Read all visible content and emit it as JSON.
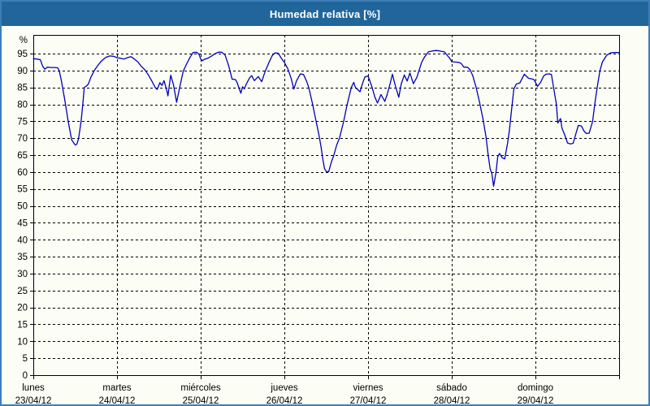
{
  "window": {
    "title": "Humedad relativa [%]"
  },
  "colors": {
    "titlebar_bg": "#20669a",
    "titlebar_text": "#ffffff",
    "frame_border": "#3d7eb8",
    "chart_bg": "#fcfdf5",
    "line": "#0000bd",
    "grid": "#000000",
    "text": "#000000"
  },
  "chart_data": {
    "type": "line",
    "title": "Humedad relativa [%]",
    "ylabel": "%",
    "ylim": [
      0,
      100.5
    ],
    "grid": true,
    "legend": "none",
    "y_ticks": [
      0,
      5,
      10,
      15,
      20,
      25,
      30,
      35,
      40,
      45,
      50,
      55,
      60,
      65,
      70,
      75,
      80,
      85,
      90,
      95
    ],
    "x_days": [
      {
        "name": "lunes",
        "date": "23/04/12"
      },
      {
        "name": "martes",
        "date": "24/04/12"
      },
      {
        "name": "miércoles",
        "date": "25/04/12"
      },
      {
        "name": "jueves",
        "date": "26/04/12"
      },
      {
        "name": "viernes",
        "date": "27/04/12"
      },
      {
        "name": "sábado",
        "date": "28/04/12"
      },
      {
        "name": "domingo",
        "date": "29/04/12"
      }
    ],
    "x_hours_total": 168,
    "series": [
      {
        "name": "Humedad relativa",
        "unit": "%",
        "points": [
          [
            0,
            93.5
          ],
          [
            1,
            93.4
          ],
          [
            2,
            93.2
          ],
          [
            2.7,
            91.2
          ],
          [
            3.3,
            90.4
          ],
          [
            4,
            91
          ],
          [
            5,
            90.9
          ],
          [
            6,
            90.9
          ],
          [
            7,
            90.8
          ],
          [
            7.4,
            90
          ],
          [
            8,
            87.3
          ],
          [
            9,
            81.5
          ],
          [
            10,
            75
          ],
          [
            11,
            69.5
          ],
          [
            12,
            68
          ],
          [
            12.5,
            68.2
          ],
          [
            13,
            70
          ],
          [
            13.7,
            75
          ],
          [
            14.2,
            80
          ],
          [
            14.6,
            85
          ],
          [
            15.2,
            85.4
          ],
          [
            15.8,
            86
          ],
          [
            16.5,
            88
          ],
          [
            17.5,
            90
          ],
          [
            18.5,
            91.5
          ],
          [
            19.5,
            92.8
          ],
          [
            20.8,
            93.9
          ],
          [
            21.9,
            94.3
          ],
          [
            23,
            94.2
          ],
          [
            24,
            93.8
          ],
          [
            25,
            93.6
          ],
          [
            26,
            93.4
          ],
          [
            27,
            93.8
          ],
          [
            28,
            94.1
          ],
          [
            29,
            93.4
          ],
          [
            30,
            92.5
          ],
          [
            31,
            91.2
          ],
          [
            32,
            90.2
          ],
          [
            33,
            88.7
          ],
          [
            34,
            86.9
          ],
          [
            35,
            84.9
          ],
          [
            35.5,
            84.4
          ],
          [
            36.3,
            86.4
          ],
          [
            36.9,
            85.6
          ],
          [
            37.5,
            87
          ],
          [
            38.3,
            84
          ],
          [
            38.6,
            82.5
          ],
          [
            39.4,
            88.6
          ],
          [
            40.2,
            85.8
          ],
          [
            41.1,
            80.6
          ],
          [
            42,
            85.2
          ],
          [
            43,
            89.8
          ],
          [
            44,
            92
          ],
          [
            45,
            94
          ],
          [
            45.8,
            95.3
          ],
          [
            46.8,
            95.4
          ],
          [
            47.5,
            94.8
          ],
          [
            48,
            93.4
          ],
          [
            48.5,
            92.9
          ],
          [
            49,
            93.3
          ],
          [
            50,
            93.6
          ],
          [
            51,
            94.2
          ],
          [
            52,
            94.9
          ],
          [
            53,
            95.4
          ],
          [
            54,
            95.4
          ],
          [
            55,
            94.6
          ],
          [
            56,
            91.5
          ],
          [
            56.5,
            89.5
          ],
          [
            57,
            87.5
          ],
          [
            58,
            87.3
          ],
          [
            58.5,
            86.3
          ],
          [
            59,
            84.8
          ],
          [
            59.5,
            83.3
          ],
          [
            60,
            85.2
          ],
          [
            60.5,
            84.6
          ],
          [
            61,
            85.8
          ],
          [
            62,
            87.8
          ],
          [
            62.6,
            88.5
          ],
          [
            63.4,
            87
          ],
          [
            64.5,
            88.2
          ],
          [
            65.5,
            86.7
          ],
          [
            66.5,
            89.8
          ],
          [
            67.5,
            92.2
          ],
          [
            68.5,
            94.4
          ],
          [
            69.3,
            95.2
          ],
          [
            70.3,
            95.1
          ],
          [
            71,
            93.8
          ],
          [
            72,
            92.4
          ],
          [
            73,
            90.5
          ],
          [
            74,
            87.5
          ],
          [
            74.7,
            84.5
          ],
          [
            75.5,
            87
          ],
          [
            76.6,
            89
          ],
          [
            77.5,
            88.8
          ],
          [
            78.5,
            86.5
          ],
          [
            79,
            85
          ],
          [
            80,
            80.5
          ],
          [
            81,
            75.5
          ],
          [
            81.5,
            73
          ],
          [
            82,
            70.5
          ],
          [
            82.5,
            67.5
          ],
          [
            83,
            64
          ],
          [
            83.5,
            61
          ],
          [
            84,
            60.2
          ],
          [
            84.7,
            60.1
          ],
          [
            85.5,
            63
          ],
          [
            86.2,
            65
          ],
          [
            87,
            68
          ],
          [
            87.8,
            70
          ],
          [
            89,
            75
          ],
          [
            90,
            80
          ],
          [
            91.2,
            85
          ],
          [
            91.9,
            86.5
          ],
          [
            92.4,
            84.9
          ],
          [
            93.2,
            84.2
          ],
          [
            93.7,
            83.7
          ],
          [
            94.5,
            86.5
          ],
          [
            95.1,
            88.1
          ],
          [
            96,
            88.4
          ],
          [
            97,
            85.5
          ],
          [
            98,
            82
          ],
          [
            98.7,
            80.4
          ],
          [
            99.7,
            82.9
          ],
          [
            100.8,
            80.9
          ],
          [
            101.5,
            83
          ],
          [
            102.3,
            86
          ],
          [
            103,
            88.9
          ],
          [
            103.7,
            86
          ],
          [
            104.8,
            82.1
          ],
          [
            105.5,
            86
          ],
          [
            106.4,
            88.7
          ],
          [
            107.2,
            86.9
          ],
          [
            108,
            89.3
          ],
          [
            109,
            86.1
          ],
          [
            110,
            88
          ],
          [
            110.6,
            90
          ],
          [
            111.4,
            92.5
          ],
          [
            112.2,
            94
          ],
          [
            113.3,
            95.5
          ],
          [
            114.5,
            95.8
          ],
          [
            115.5,
            95.9
          ],
          [
            116.5,
            95.8
          ],
          [
            117.9,
            95.5
          ],
          [
            118.7,
            94.5
          ],
          [
            119.5,
            93.5
          ],
          [
            120,
            92.6
          ],
          [
            121,
            92.5
          ],
          [
            122,
            92.4
          ],
          [
            122.7,
            92.1
          ],
          [
            123.5,
            91
          ],
          [
            124.5,
            91
          ],
          [
            125.3,
            90.2
          ],
          [
            126,
            88.5
          ],
          [
            127,
            85
          ],
          [
            128,
            80.5
          ],
          [
            129,
            75.5
          ],
          [
            129.8,
            70.5
          ],
          [
            130.4,
            65.5
          ],
          [
            131,
            61
          ],
          [
            131.5,
            59.5
          ],
          [
            132,
            55.8
          ],
          [
            132.7,
            60
          ],
          [
            133.2,
            64.5
          ],
          [
            133.7,
            65.5
          ],
          [
            134.5,
            64.2
          ],
          [
            135.2,
            63.9
          ],
          [
            136,
            68.5
          ],
          [
            136.5,
            72
          ],
          [
            137,
            77
          ],
          [
            137.8,
            84.5
          ],
          [
            138.5,
            86
          ],
          [
            139.5,
            86.3
          ],
          [
            140.8,
            88.9
          ],
          [
            142,
            87.7
          ],
          [
            143.5,
            87.4
          ],
          [
            144,
            86.5
          ],
          [
            144.6,
            85.3
          ],
          [
            145.5,
            86.5
          ],
          [
            146.3,
            88.3
          ],
          [
            147,
            88.9
          ],
          [
            148,
            89
          ],
          [
            148.6,
            88.8
          ],
          [
            149.2,
            85
          ],
          [
            150,
            80
          ],
          [
            150.4,
            74.5
          ],
          [
            151.2,
            75.8
          ],
          [
            151.6,
            73
          ],
          [
            152.4,
            71
          ],
          [
            153.2,
            68.6
          ],
          [
            154,
            68.3
          ],
          [
            154.8,
            68.5
          ],
          [
            155.5,
            71
          ],
          [
            156.3,
            73.8
          ],
          [
            157.2,
            73.6
          ],
          [
            158,
            72
          ],
          [
            158.6,
            71.4
          ],
          [
            159.4,
            71.5
          ],
          [
            160.4,
            75
          ],
          [
            161,
            80
          ],
          [
            161.7,
            85
          ],
          [
            162.5,
            90
          ],
          [
            163.2,
            92.5
          ],
          [
            164.4,
            94.5
          ],
          [
            165.5,
            95.2
          ],
          [
            166.5,
            95.3
          ],
          [
            168,
            95.3
          ]
        ]
      }
    ]
  }
}
